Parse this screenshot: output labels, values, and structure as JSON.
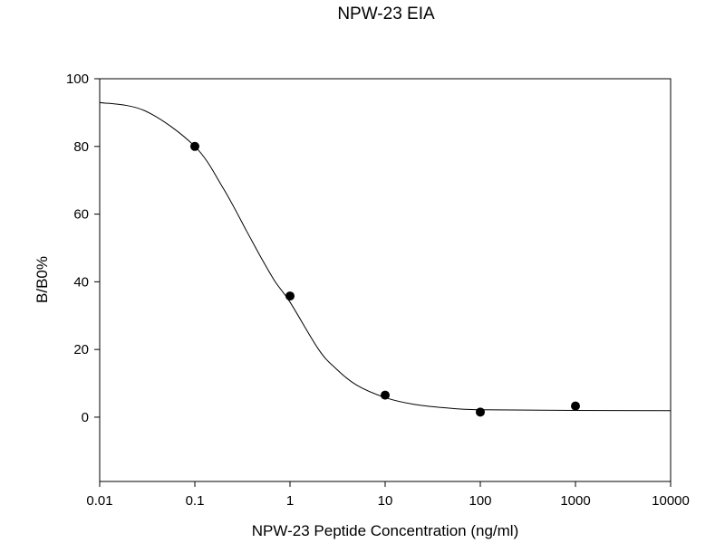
{
  "chart_data": {
    "type": "scatter",
    "title": "NPW-23 EIA",
    "xlabel": "NPW-23 Peptide Concentration (ng/ml)",
    "ylabel": "B/B0%",
    "x_scale": "log",
    "xlim": [
      0.01,
      10000
    ],
    "ylim": [
      -19,
      100
    ],
    "x_ticks": [
      0.01,
      0.1,
      1,
      10,
      100,
      1000,
      10000
    ],
    "x_tick_labels": [
      "0.01",
      "0.1",
      "1",
      "10",
      "100",
      "1000",
      "10000"
    ],
    "y_ticks": [
      0,
      20,
      40,
      60,
      80,
      100
    ],
    "y_tick_labels": [
      "0",
      "20",
      "40",
      "60",
      "80",
      "100"
    ],
    "grid": false,
    "legend": "none",
    "series": [
      {
        "type": "scatter",
        "x": [
          0.1,
          1,
          10,
          100,
          1000
        ],
        "y": [
          80,
          35.8,
          6.5,
          1.5,
          3.3
        ]
      },
      {
        "type": "line",
        "x": [
          0.01,
          0.03,
          0.1,
          0.2,
          0.35,
          0.5,
          0.7,
          1,
          2,
          3,
          5,
          10,
          20,
          50,
          100,
          1000,
          10000
        ],
        "y": [
          93,
          90.5,
          80,
          67.5,
          55,
          47,
          40,
          34,
          20,
          14.5,
          9.5,
          5.8,
          3.8,
          2.6,
          2.2,
          2.0,
          1.9
        ]
      }
    ],
    "colors": {
      "axis": "#000000",
      "marker": "#000000",
      "curve": "#000000"
    }
  }
}
